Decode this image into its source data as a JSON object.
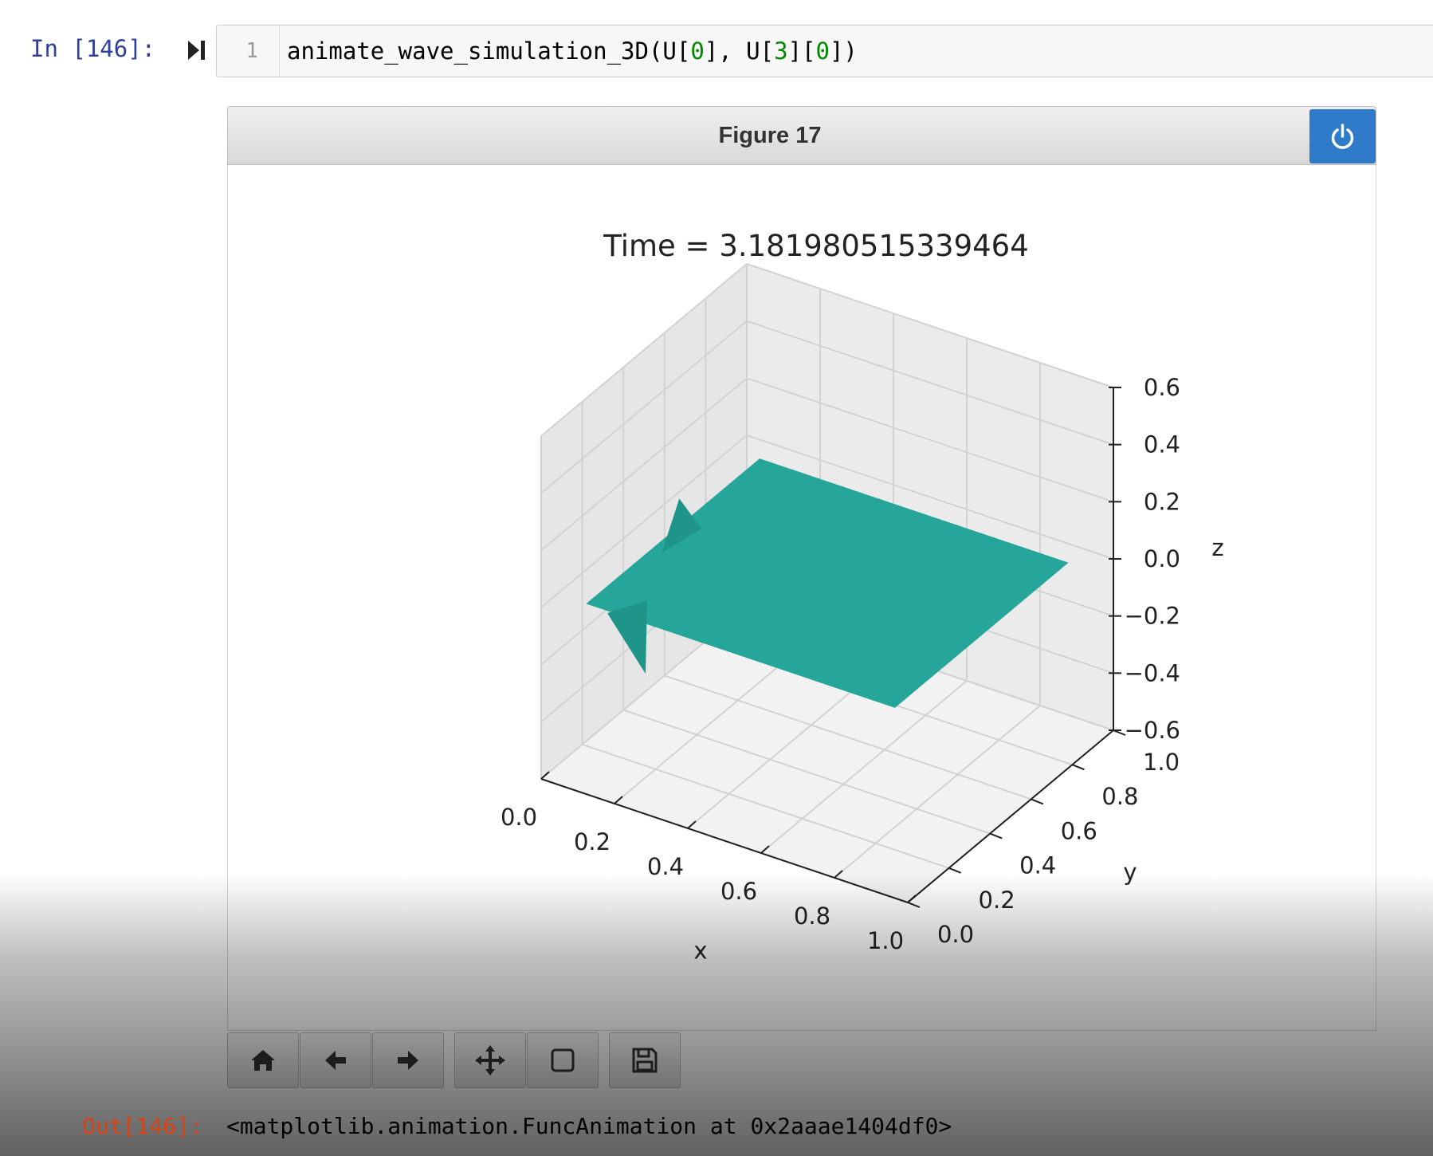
{
  "cell": {
    "in_prompt": "In [146]:",
    "line_number": "1",
    "code_prefix": "animate_wave_simulation_3D(U[",
    "code_n1": "0",
    "code_mid": "], U[",
    "code_n2": "3",
    "code_mid2": "][",
    "code_n3": "0",
    "code_suffix": "])",
    "out_prompt": "Out[146]:",
    "output": "<matplotlib.animation.FuncAnimation at 0x2aaae1404df0>"
  },
  "figure": {
    "title": "Figure 17",
    "power_icon": "power-icon"
  },
  "toolbar": [
    {
      "name": "home-button",
      "icon": "home-icon"
    },
    {
      "name": "back-button",
      "icon": "arrow-left-icon"
    },
    {
      "name": "forward-button",
      "icon": "arrow-right-icon"
    },
    {
      "name": "pan-button",
      "icon": "move-icon"
    },
    {
      "name": "zoom-button",
      "icon": "square-icon"
    },
    {
      "name": "save-button",
      "icon": "save-icon"
    }
  ],
  "chart_data": {
    "type": "surface3d",
    "title": "Time = 3.181980515339464",
    "xlabel": "x",
    "ylabel": "y",
    "zlabel": "z",
    "xticks": [
      "0.0",
      "0.2",
      "0.4",
      "0.6",
      "0.8",
      "1.0"
    ],
    "yticks": [
      "0.0",
      "0.2",
      "0.4",
      "0.6",
      "0.8",
      "1.0"
    ],
    "zticks": [
      "0.6",
      "0.4",
      "0.2",
      "0.0",
      "−0.2",
      "−0.4",
      "−0.6"
    ],
    "xlim": [
      0,
      1
    ],
    "ylim": [
      0,
      1
    ],
    "zlim": [
      -0.6,
      0.6
    ],
    "surface_color": "#26a69a",
    "surface_z_approx": 0.0
  }
}
